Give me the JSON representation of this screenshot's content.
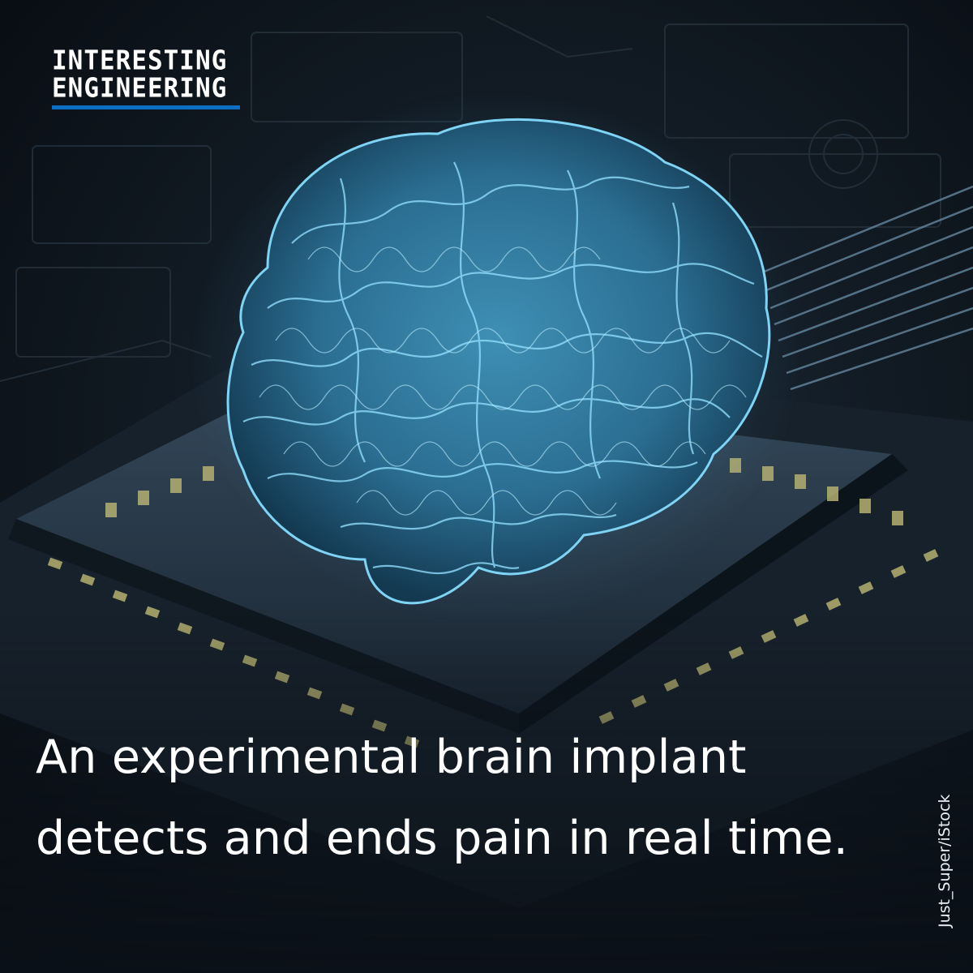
{
  "brand": {
    "line1": "INTERESTING",
    "line2": "ENGINEERING",
    "accent": "#0d6fc4"
  },
  "headline": {
    "before": "An experimental brain implant ",
    "highlight": "detects and ends pain",
    "after": " in real time."
  },
  "credit": "Just_Super/iStock",
  "colors": {
    "brain": "#5ab8e0",
    "brain_glow": "#7fd3f5",
    "chip": "#2a3a48",
    "pin": "#b6b072"
  }
}
